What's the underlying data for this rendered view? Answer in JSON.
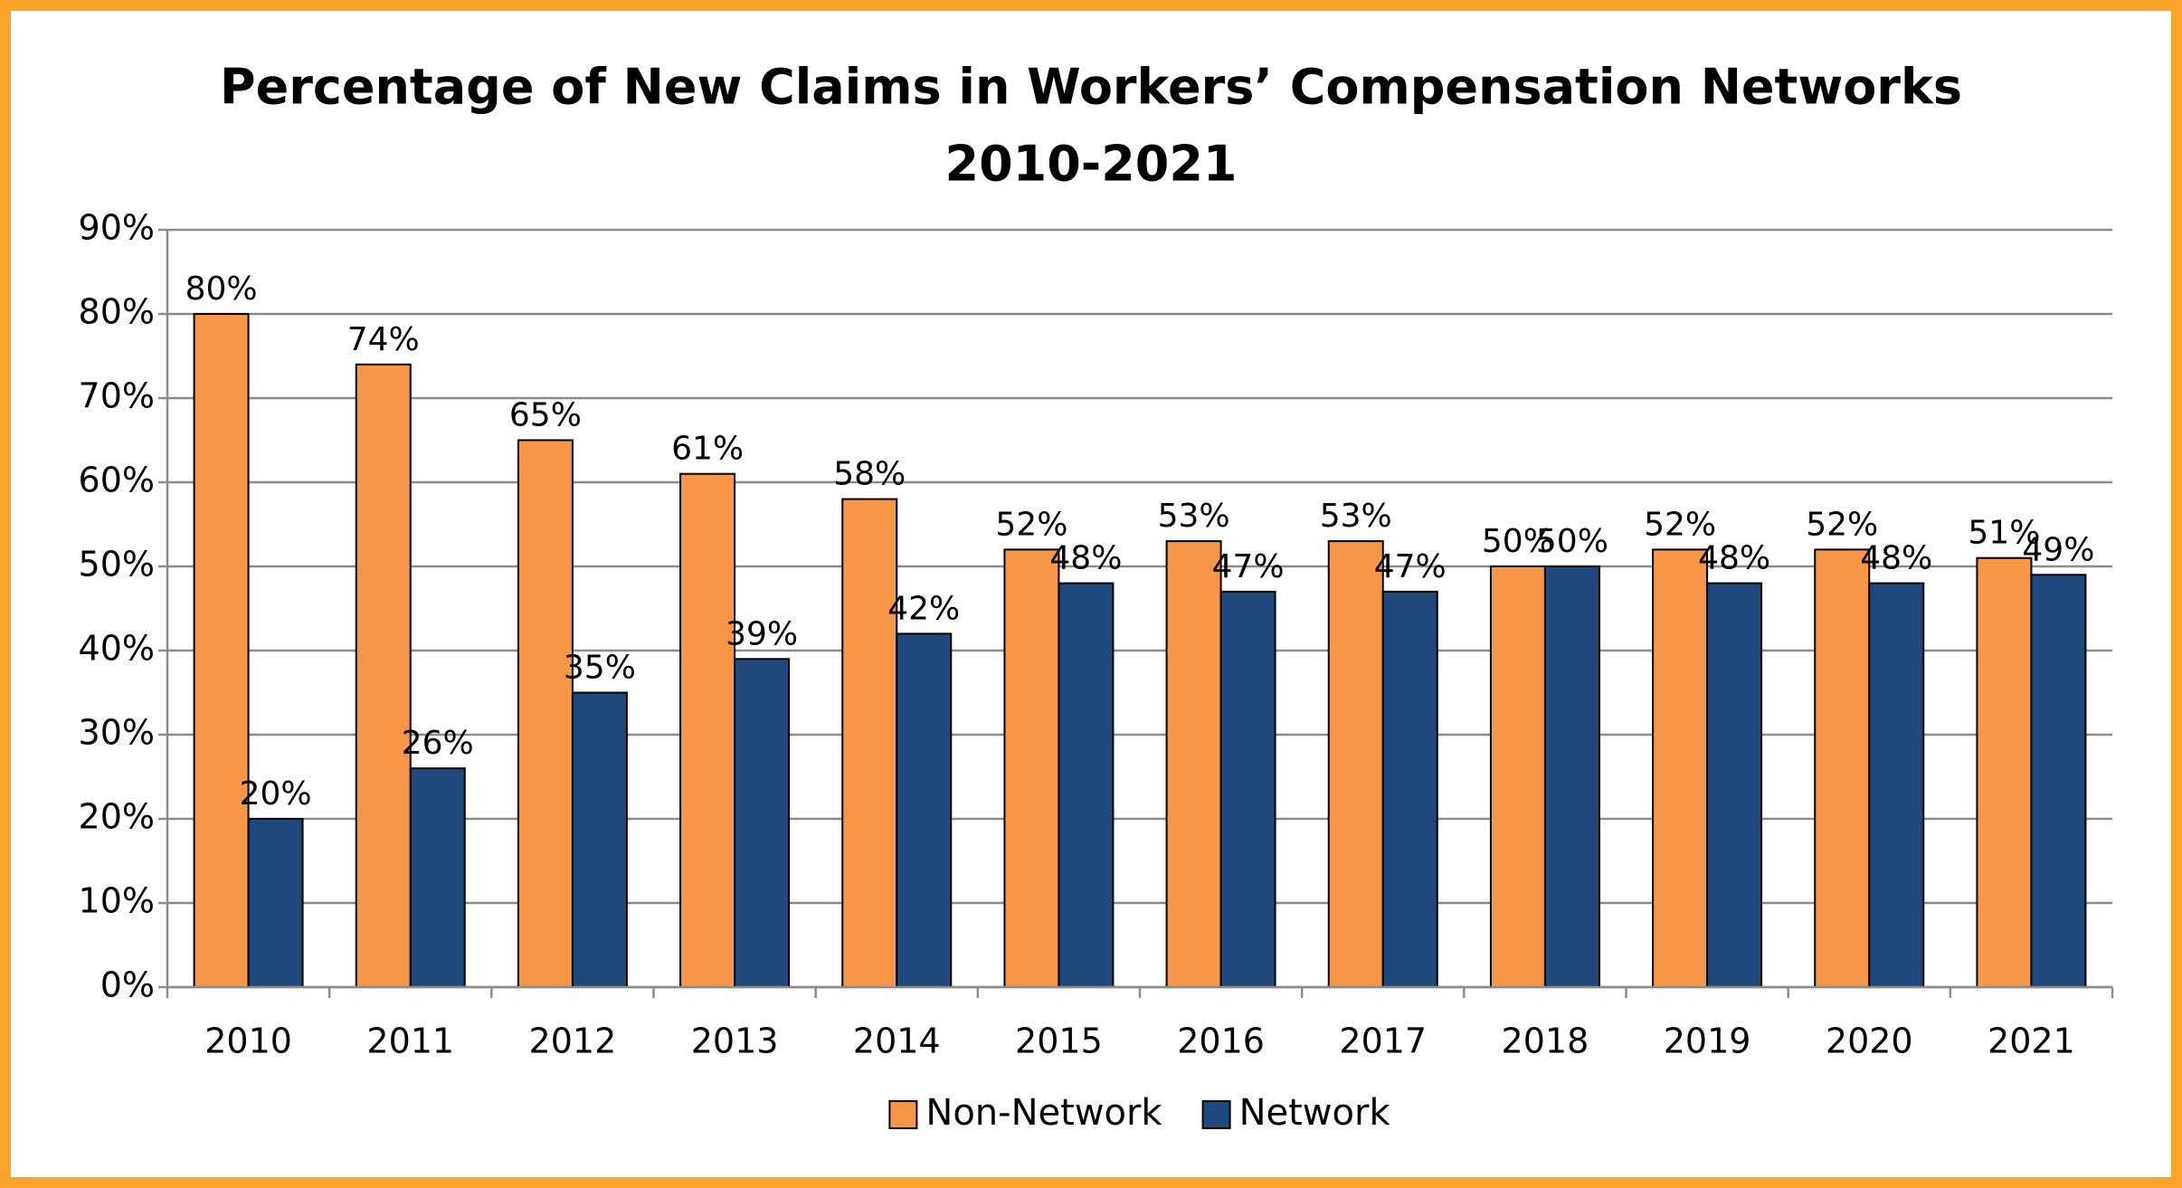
{
  "chart_data": {
    "type": "bar",
    "title": "Percentage of New Claims in Workers’ Compensation Networks",
    "subtitle": "2010-2021",
    "categories": [
      "2010",
      "2011",
      "2012",
      "2013",
      "2014",
      "2015",
      "2016",
      "2017",
      "2018",
      "2019",
      "2020",
      "2021"
    ],
    "series": [
      {
        "name": "Non-Network",
        "color": "#f79646",
        "values": [
          80,
          74,
          65,
          61,
          58,
          52,
          53,
          53,
          50,
          52,
          52,
          51
        ],
        "value_labels": [
          "80%",
          "74%",
          "65%",
          "61%",
          "58%",
          "52%",
          "53%",
          "53%",
          "50%",
          "52%",
          "52%",
          "51%"
        ]
      },
      {
        "name": "Network",
        "color": "#1f497d",
        "values": [
          20,
          26,
          35,
          39,
          42,
          48,
          47,
          47,
          50,
          48,
          48,
          49
        ],
        "value_labels": [
          "20%",
          "26%",
          "35%",
          "39%",
          "42%",
          "48%",
          "47%",
          "47%",
          "50%",
          "48%",
          "48%",
          "49%"
        ]
      }
    ],
    "ylim": [
      0,
      90
    ],
    "yticks": [
      {
        "value": 0,
        "label": "0%"
      },
      {
        "value": 10,
        "label": "10%"
      },
      {
        "value": 20,
        "label": "20%"
      },
      {
        "value": 30,
        "label": "30%"
      },
      {
        "value": 40,
        "label": "40%"
      },
      {
        "value": 50,
        "label": "50%"
      },
      {
        "value": 60,
        "label": "60%"
      },
      {
        "value": 70,
        "label": "70%"
      },
      {
        "value": 80,
        "label": "80%"
      },
      {
        "value": 90,
        "label": "90%"
      }
    ],
    "grid": true,
    "legend": "bottom"
  }
}
